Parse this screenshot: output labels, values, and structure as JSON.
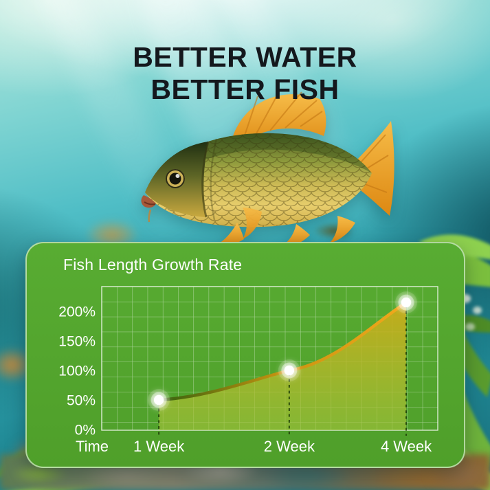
{
  "headline": {
    "line1": "BETTER WATER",
    "line2": "BETTER FISH",
    "color": "#14181d"
  },
  "scene": {
    "water_top_color": "#b4e8dc",
    "water_deep_color": "#196f7d",
    "plant_color": "#6fb43c",
    "rock_color": "#8a7a55",
    "fish_icon": "golden-carp-icon"
  },
  "panel": {
    "background_color": "#53a62e",
    "border_color": "rgba(243,251,237,0.6)"
  },
  "chart_data": {
    "type": "area",
    "title": "Fish Length Growth Rate",
    "xlabel": "Time",
    "x": [
      "1 Week",
      "2 Week",
      "4 Week"
    ],
    "values": [
      50,
      100,
      215
    ],
    "y_ticks": [
      {
        "label": "200%",
        "value": 200
      },
      {
        "label": "150%",
        "value": 150
      },
      {
        "label": "100%",
        "value": 100
      },
      {
        "label": "50%",
        "value": 50
      },
      {
        "label": "0%",
        "value": 0
      }
    ],
    "ylim": [
      0,
      237
    ],
    "grid": true,
    "legend": false,
    "grid_line_color": "rgba(255,255,255,0.5)",
    "grid_border_color": "rgba(255,255,255,0.78)",
    "label_color": "#ffffff",
    "curve_gradient": [
      "#33610e",
      "#c89310",
      "#f2a91c"
    ],
    "area_gradient": [
      "rgba(203,171,24,0.95)",
      "rgba(164,196,58,0.62)"
    ],
    "point_color": "#ffffff",
    "drop_line_color": "#1d3c07"
  }
}
